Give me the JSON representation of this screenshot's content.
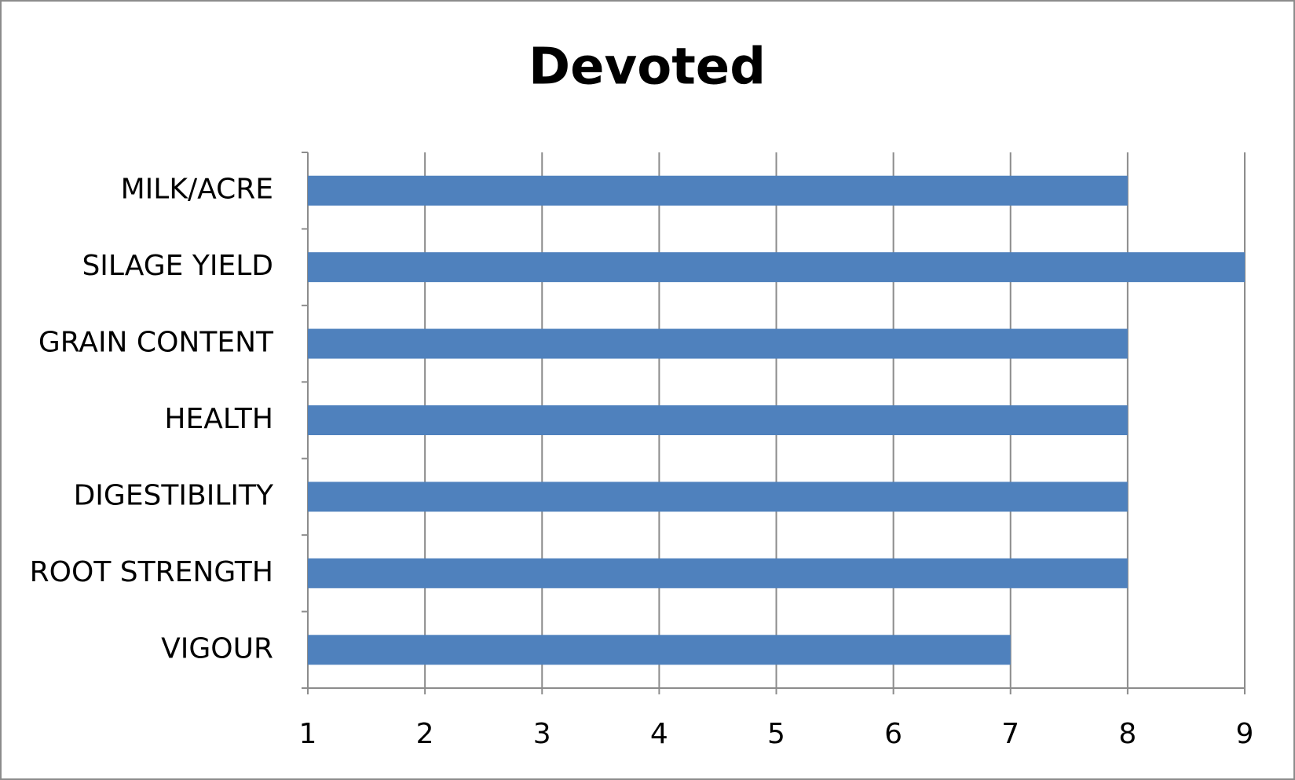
{
  "chart_data": {
    "type": "bar",
    "orientation": "horizontal",
    "title": "Devoted",
    "categories": [
      "MILK/ACRE",
      "SILAGE YIELD",
      "GRAIN CONTENT",
      "HEALTH",
      "DIGESTIBILITY",
      "ROOT STRENGTH",
      "VIGOUR"
    ],
    "values": [
      8,
      9,
      8,
      8,
      8,
      8,
      7
    ],
    "color": "#4f81bd",
    "xlim": [
      1,
      9
    ],
    "xticks": [
      1,
      2,
      3,
      4,
      5,
      6,
      7,
      8,
      9
    ],
    "grid": true
  }
}
